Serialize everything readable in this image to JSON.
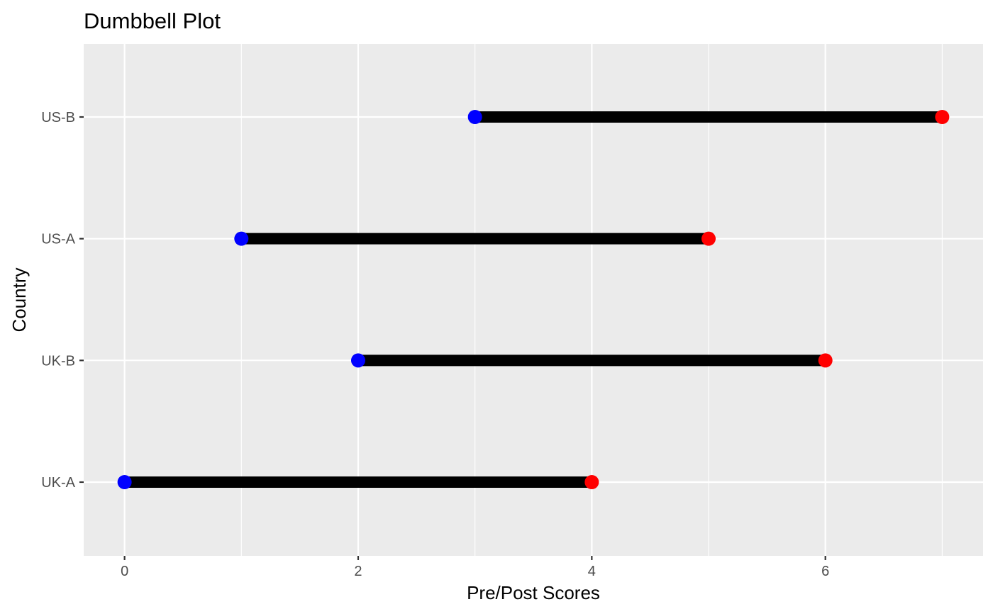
{
  "chart_data": {
    "type": "dumbbell",
    "title": "Dumbbell Plot",
    "xlabel": "Pre/Post Scores",
    "ylabel": "Country",
    "xlim": [
      -0.35,
      7.35
    ],
    "xticks": [
      "0",
      "2",
      "4",
      "6"
    ],
    "xtick_values": [
      0,
      2,
      4,
      6
    ],
    "x_minor_gridlines": [
      1,
      3,
      5,
      7
    ],
    "grid": true,
    "categories": [
      "UK-A",
      "UK-B",
      "US-A",
      "US-B"
    ],
    "series": [
      {
        "values": [
          0,
          2,
          1,
          3
        ],
        "color": "#0000ff"
      },
      {
        "values": [
          4,
          6,
          5,
          7
        ],
        "color": "#ff0000"
      }
    ],
    "segment_color": "#000000",
    "panel_background": "#ebebeb",
    "grid_color": "#ffffff"
  }
}
